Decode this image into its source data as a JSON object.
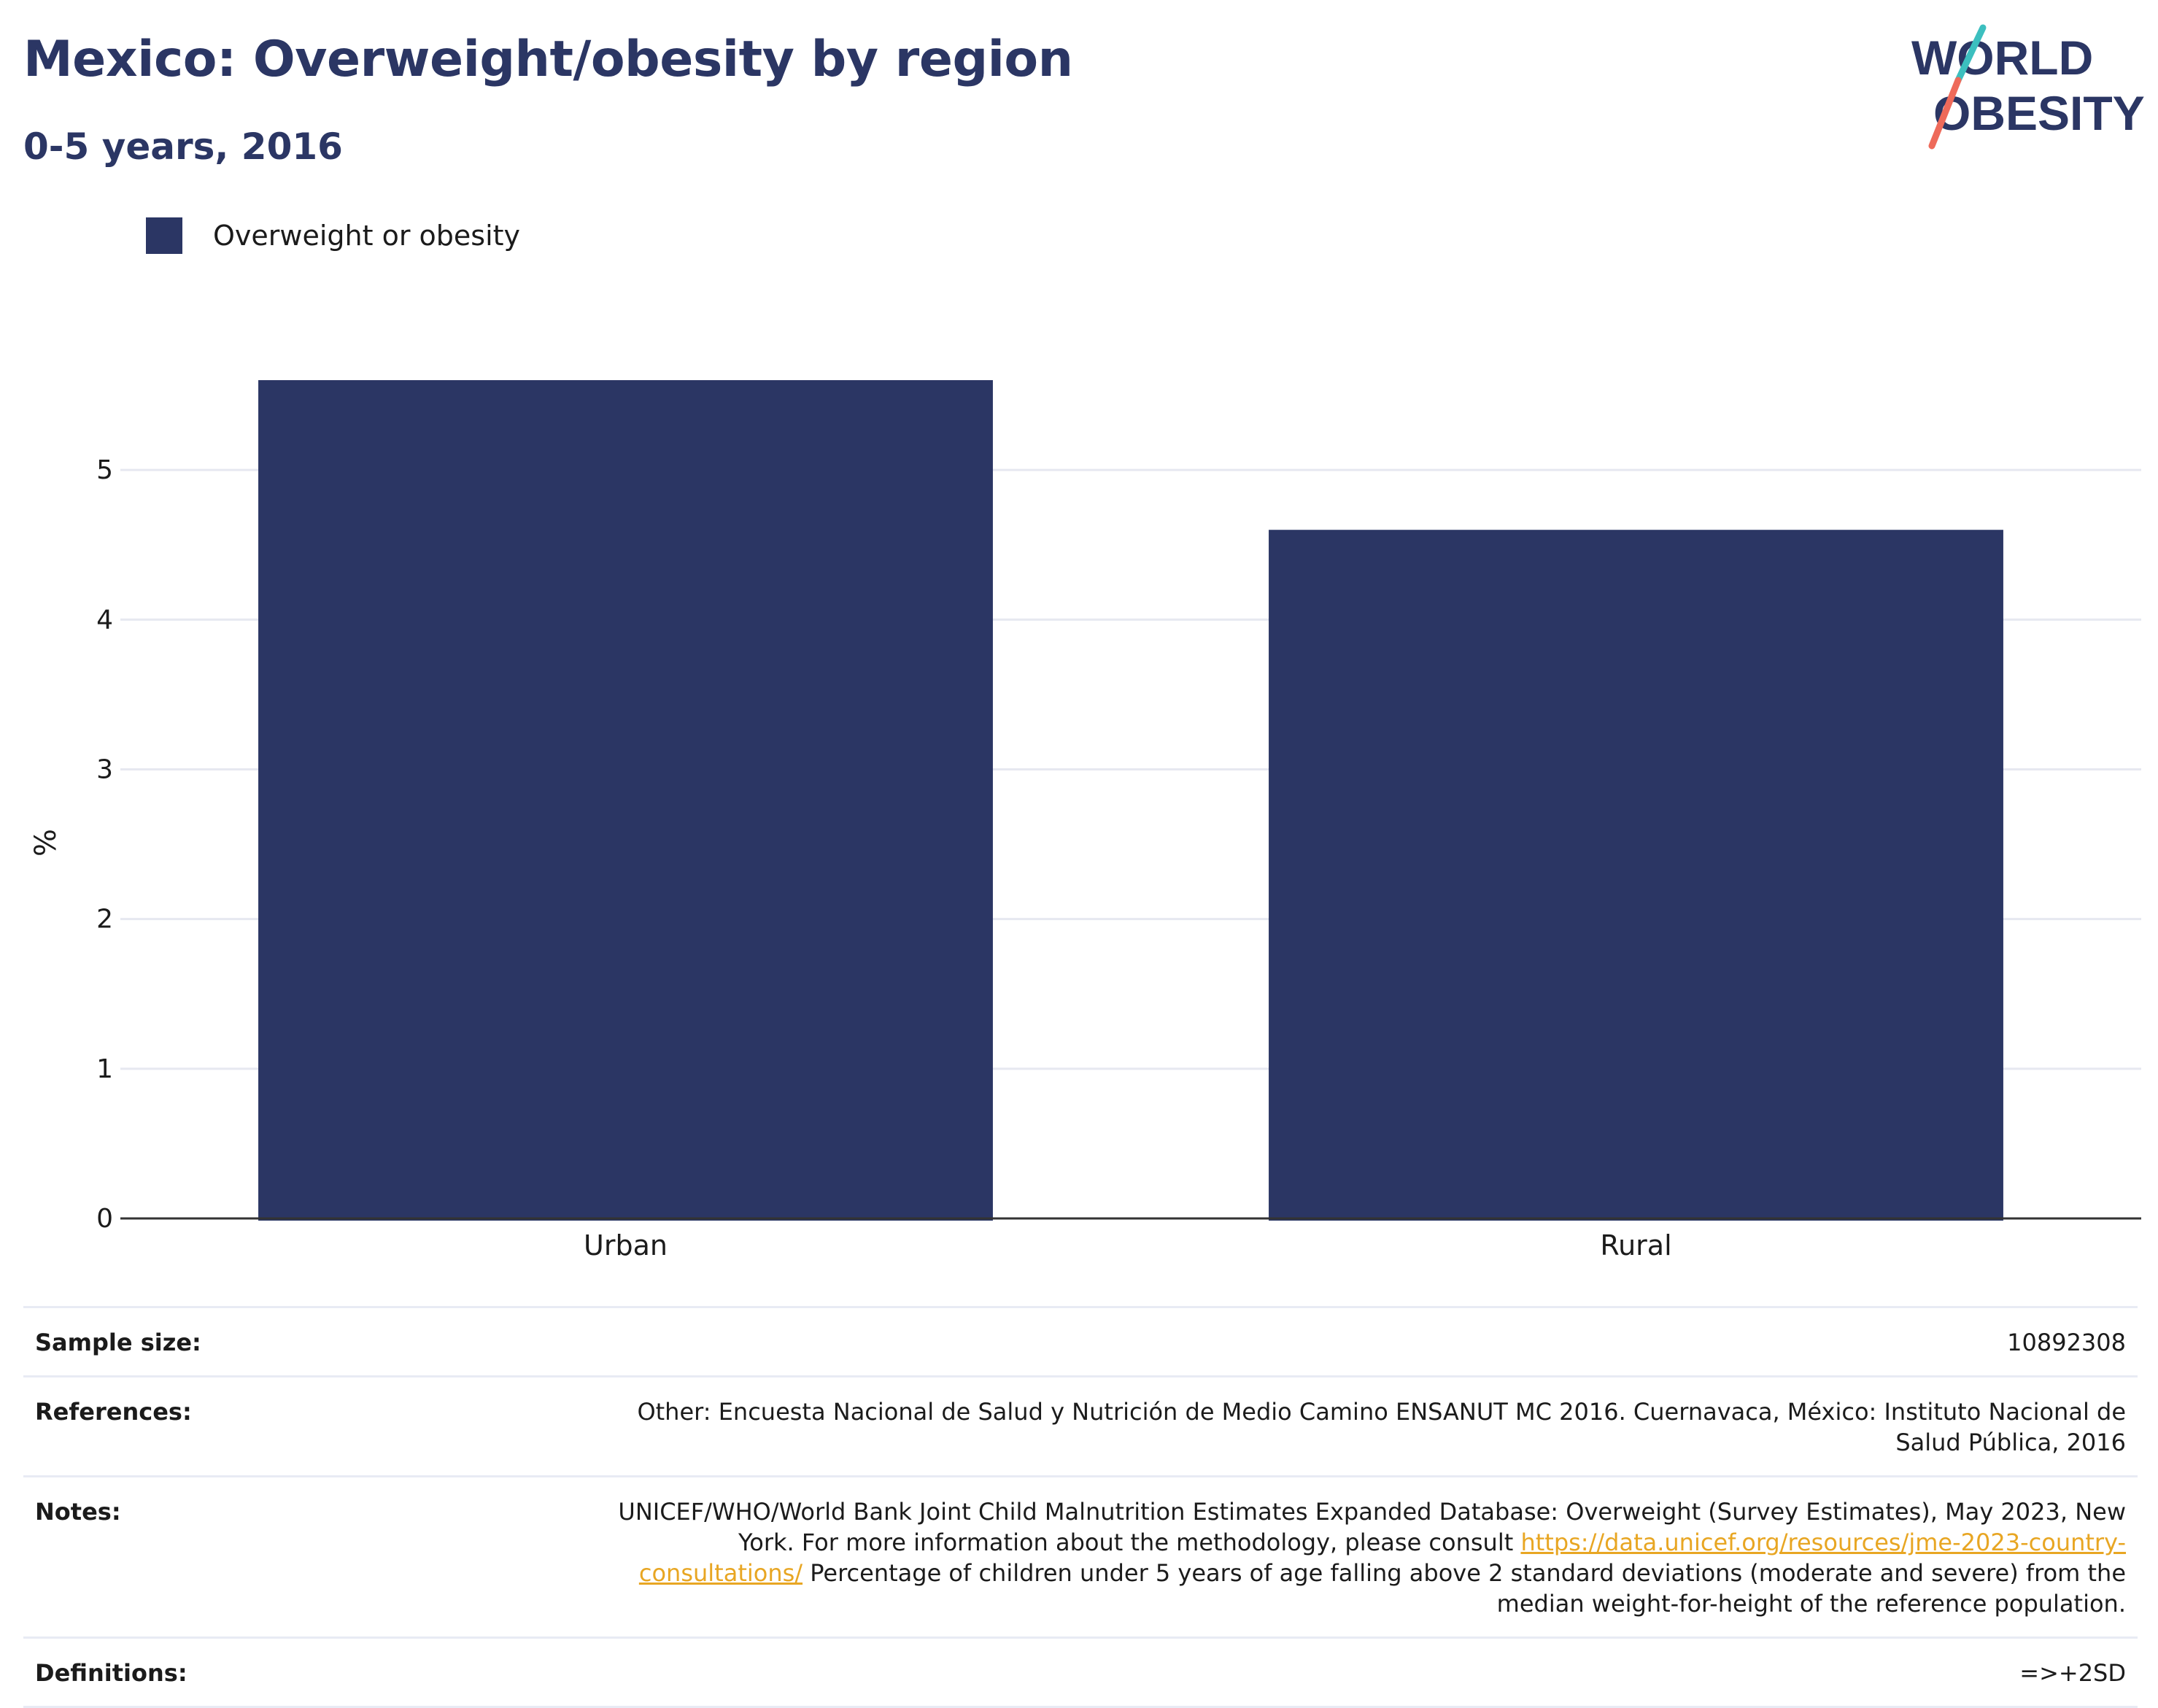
{
  "header": {
    "title": "Mexico: Overweight/obesity by region",
    "subtitle": "0-5 years, 2016"
  },
  "logo": {
    "line1": "WORLD",
    "line2": "OBESITY"
  },
  "legend": {
    "label": "Overweight or obesity",
    "color": "#2b3664"
  },
  "chart_data": {
    "type": "bar",
    "categories": [
      "Urban",
      "Rural"
    ],
    "series": [
      {
        "name": "Overweight or obesity",
        "values": [
          5.6,
          4.6
        ],
        "color": "#2b3664"
      }
    ],
    "ylabel": "%",
    "xlabel": "",
    "ylim": [
      0,
      5.8
    ],
    "yticks": [
      0,
      1,
      2,
      3,
      4,
      5
    ],
    "grid": true,
    "legend_position": "top-left"
  },
  "info": {
    "sample_size_label": "Sample size:",
    "sample_size_value": "10892308",
    "references_label": "References:",
    "references_value": "Other: Encuesta Nacional de Salud y Nutrición de Medio Camino ENSANUT MC 2016. Cuernavaca, México: Instituto Nacional de Salud Pública, 2016",
    "notes_label": "Notes:",
    "notes_text_before": "UNICEF/WHO/World Bank Joint Child Malnutrition Estimates Expanded Database: Overweight (Survey Estimates), May 2023, New York. For more information about the methodology, please consult ",
    "notes_link": "https://data.unicef.org/resources/jme-2023-country-consultations/",
    "notes_text_after": " Percentage of children under 5 years of age falling above 2 standard deviations (moderate and severe) from the median weight-for-height of the reference population.",
    "definitions_label": "Definitions:",
    "definitions_value": "=>+2SD"
  },
  "colors": {
    "accent": "#2b3664",
    "grid": "#e6e8f0",
    "link": "#e8a623",
    "logo_teal": "#3cbfbf",
    "logo_coral": "#ee6a5a"
  }
}
